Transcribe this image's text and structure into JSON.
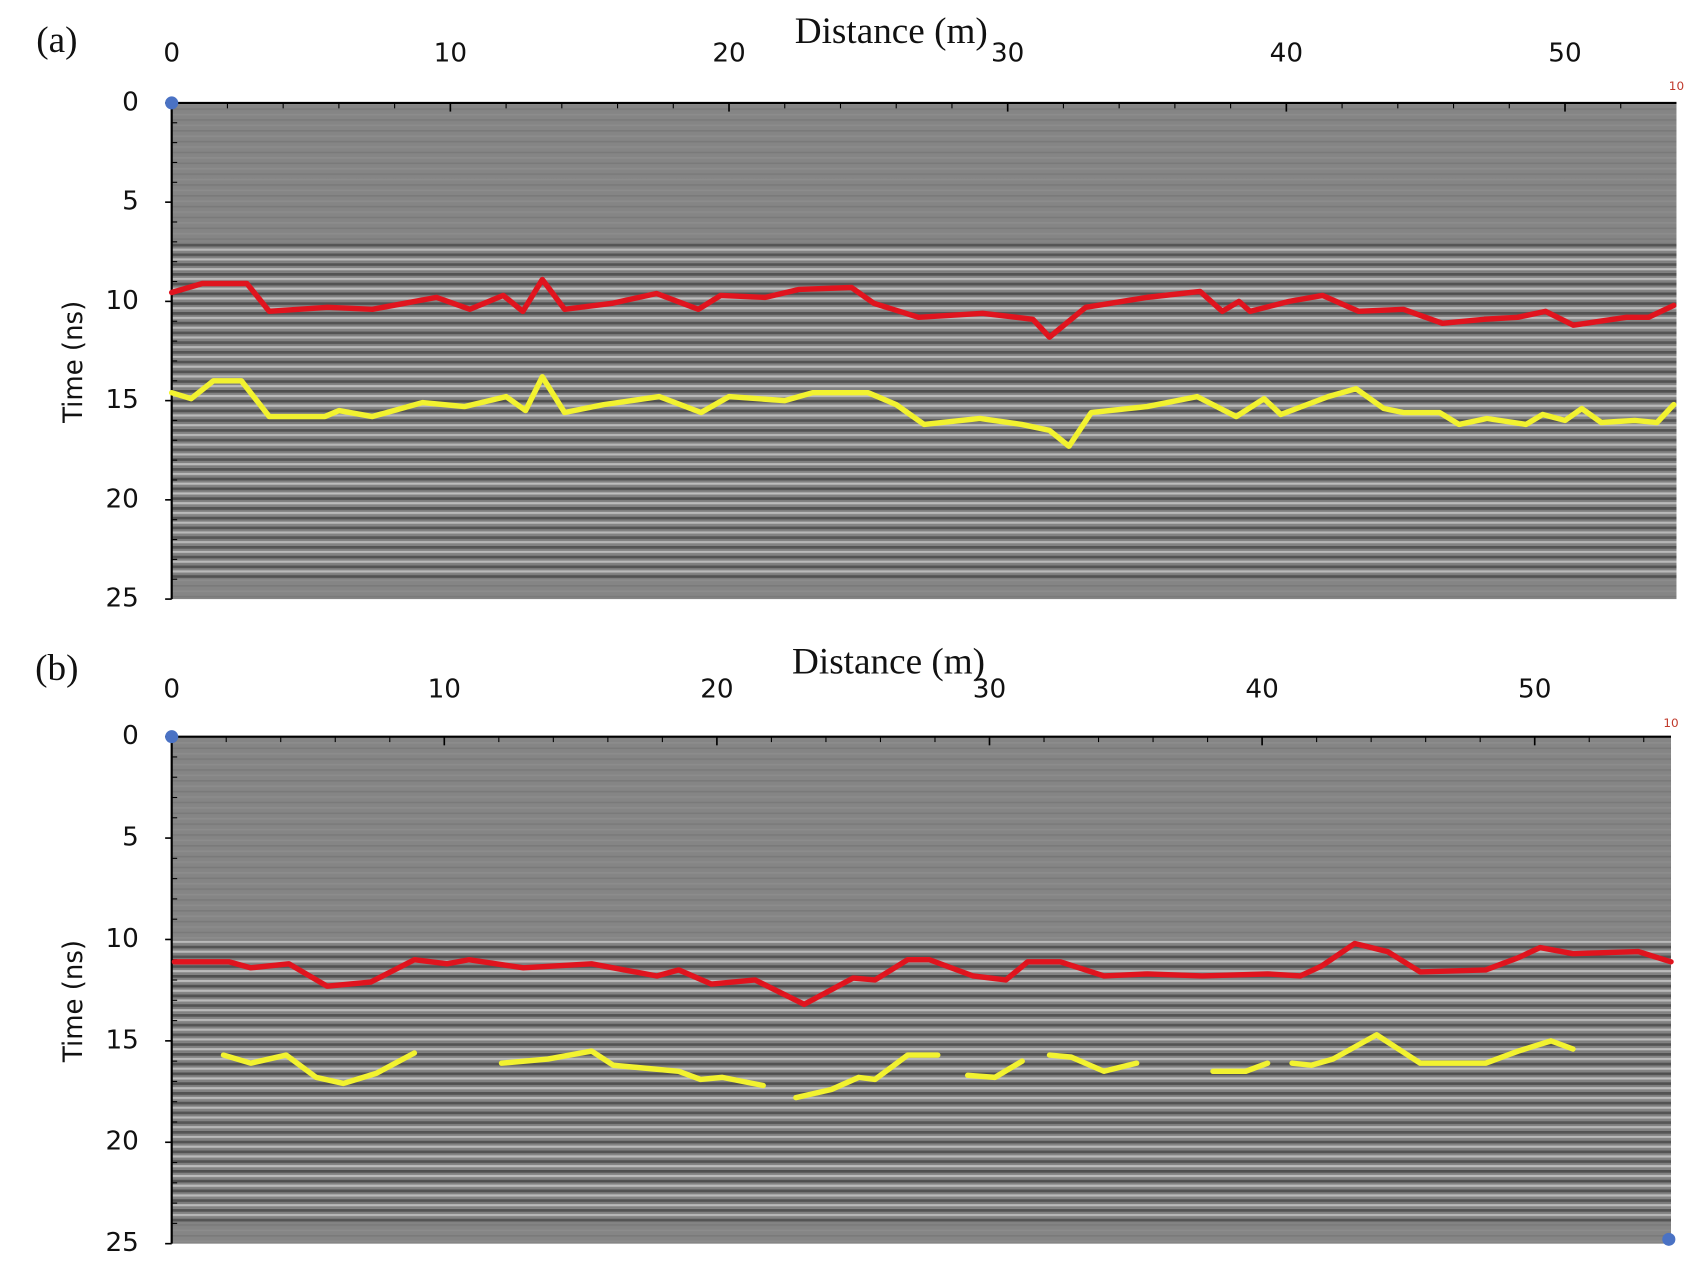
{
  "chart_data": [
    {
      "type": "line",
      "panel_label": "(a)",
      "xlabel": "Distance (m)",
      "ylabel": "Time (ns)",
      "corner_label": "10",
      "xlim": [
        0,
        54
      ],
      "ylim": [
        0,
        25
      ],
      "y_reversed": true,
      "xticks": [
        0,
        10,
        20,
        30,
        40,
        50
      ],
      "xminorticks": [
        2,
        4,
        6,
        8,
        12,
        14,
        16,
        18,
        22,
        24,
        26,
        28,
        32,
        34,
        36,
        38,
        42,
        44,
        46,
        48,
        52
      ],
      "yticks": [
        0,
        5,
        10,
        15,
        20,
        25
      ],
      "yminorticks": [
        1,
        2,
        3,
        4,
        6,
        7,
        8,
        9,
        11,
        12,
        13,
        14,
        16,
        17,
        18,
        19,
        21,
        22,
        23,
        24
      ],
      "series": [
        {
          "color": "#e0141e",
          "x": [
            0,
            1.1,
            2.7,
            3.5,
            5.6,
            7.2,
            9.5,
            10.7,
            11.9,
            12.6,
            13.3,
            14.1,
            15.8,
            17.4,
            18.9,
            19.7,
            21.3,
            22.5,
            24.4,
            25.2,
            26.8,
            29.1,
            30.9,
            31.5,
            32.8,
            35.0,
            36.9,
            37.7,
            38.3,
            38.7,
            40.1,
            41.3,
            42.6,
            44.2,
            45.6,
            47.1,
            48.3,
            49.3,
            50.3,
            52.2,
            53.0,
            53.9
          ],
          "values": [
            9.55,
            9.1,
            9.1,
            10.5,
            10.3,
            10.4,
            9.8,
            10.4,
            9.7,
            10.5,
            8.9,
            10.4,
            10.1,
            9.6,
            10.4,
            9.7,
            9.8,
            9.4,
            9.3,
            10.1,
            10.8,
            10.6,
            10.9,
            11.8,
            10.3,
            9.8,
            9.5,
            10.5,
            10.0,
            10.5,
            10.0,
            9.7,
            10.5,
            10.4,
            11.1,
            10.9,
            10.8,
            10.5,
            11.2,
            10.8,
            10.8,
            10.2
          ]
        },
        {
          "color": "#f2f230",
          "x": [
            0,
            0.7,
            1.5,
            2.5,
            3.5,
            5.5,
            6,
            7.2,
            9,
            10.5,
            12,
            12.7,
            13.3,
            14.1,
            15.5,
            17.5,
            19,
            20,
            22,
            23,
            25,
            26,
            27,
            29,
            30.5,
            31.5,
            32.2,
            33,
            35,
            36.8,
            38.2,
            39.2,
            39.8,
            41.5,
            42.5,
            43.5,
            44.2,
            45.5,
            46.2,
            47.2,
            48.6,
            49.2,
            50,
            50.6,
            51.3,
            52.5,
            53.3,
            53.9
          ],
          "values": [
            14.6,
            14.9,
            14.0,
            14.0,
            15.8,
            15.8,
            15.5,
            15.8,
            15.1,
            15.3,
            14.8,
            15.5,
            13.8,
            15.6,
            15.2,
            14.8,
            15.6,
            14.8,
            15.0,
            14.6,
            14.6,
            15.2,
            16.2,
            15.9,
            16.2,
            16.5,
            17.3,
            15.6,
            15.3,
            14.8,
            15.8,
            14.9,
            15.7,
            14.8,
            14.4,
            15.4,
            15.6,
            15.6,
            16.2,
            15.9,
            16.2,
            15.7,
            16.0,
            15.4,
            16.1,
            16.0,
            16.1,
            15.2
          ]
        }
      ]
    },
    {
      "type": "line",
      "panel_label": "(b)",
      "xlabel": "Distance (m)",
      "ylabel": "Time (ns)",
      "corner_label": "10",
      "xlim": [
        0,
        55
      ],
      "ylim": [
        0,
        25
      ],
      "y_reversed": true,
      "xticks": [
        0,
        10,
        20,
        30,
        40,
        50
      ],
      "xminorticks": [
        2,
        4,
        6,
        8,
        12,
        14,
        16,
        18,
        22,
        24,
        26,
        28,
        32,
        34,
        36,
        38,
        42,
        44,
        46,
        48,
        52,
        54
      ],
      "yticks": [
        0,
        5,
        10,
        15,
        20,
        25
      ],
      "yminorticks": [
        1,
        2,
        3,
        4,
        6,
        7,
        8,
        9,
        11,
        12,
        13,
        14,
        16,
        17,
        18,
        19,
        21,
        22,
        23,
        24
      ],
      "series": [
        {
          "color": "#e0141e",
          "x": [
            0.1,
            2.1,
            2.9,
            4.3,
            5.7,
            7.3,
            8.9,
            10.1,
            10.9,
            12.9,
            15.4,
            17.8,
            18.6,
            19.8,
            21.4,
            23.2,
            25.0,
            25.8,
            27.0,
            27.8,
            29.4,
            30.6,
            31.4,
            32.6,
            34.2,
            35.8,
            37.8,
            40.2,
            41.4,
            42.2,
            43.4,
            44.6,
            45.8,
            48.2,
            49.4,
            50.2,
            51.4,
            53.8,
            55
          ],
          "values": [
            11.1,
            11.1,
            11.4,
            11.2,
            12.3,
            12.1,
            11.0,
            11.2,
            11.0,
            11.4,
            11.2,
            11.8,
            11.5,
            12.2,
            12.0,
            13.2,
            11.9,
            12.0,
            11.0,
            11.0,
            11.8,
            12.0,
            11.1,
            11.1,
            11.8,
            11.7,
            11.8,
            11.7,
            11.8,
            11.3,
            10.2,
            10.6,
            11.6,
            11.5,
            10.9,
            10.4,
            10.7,
            10.6,
            11.1
          ]
        },
        {
          "color": "#f2f230",
          "x": [
            1.9,
            2.9,
            4.2,
            5.3,
            6.3,
            7.5,
            8.9,
            null,
            12.1,
            13.8,
            15.4,
            16.2,
            18.6,
            19.4,
            20.2,
            21.7,
            null,
            22.9,
            24.2,
            25.2,
            25.8,
            27.0,
            28.1,
            null,
            29.2,
            30.2,
            31.2,
            null,
            32.2,
            33.0,
            34.2,
            35.4,
            null,
            38.2,
            39.4,
            40.2,
            null,
            41.1,
            41.8,
            42.6,
            44.2,
            45.8,
            48.2,
            49.4,
            50.6,
            51.4
          ],
          "values": [
            15.7,
            16.1,
            15.7,
            16.8,
            17.1,
            16.6,
            15.6,
            null,
            16.1,
            15.9,
            15.5,
            16.2,
            16.5,
            16.9,
            16.8,
            17.2,
            null,
            17.8,
            17.4,
            16.8,
            16.9,
            15.7,
            15.7,
            null,
            16.7,
            16.8,
            16.0,
            null,
            15.7,
            15.8,
            16.5,
            16.1,
            null,
            16.5,
            16.5,
            16.1,
            null,
            16.1,
            16.2,
            15.9,
            14.7,
            16.1,
            16.1,
            15.5,
            15.0,
            15.4
          ]
        }
      ]
    }
  ]
}
